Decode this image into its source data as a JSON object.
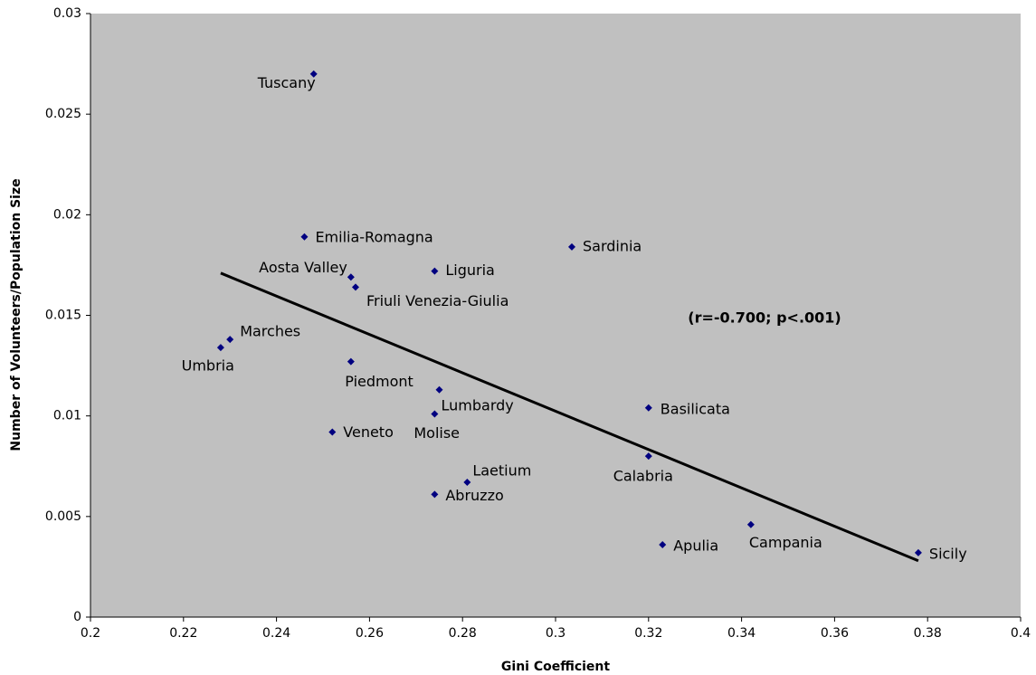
{
  "chart_data": {
    "type": "scatter",
    "labels": [
      "Tuscany",
      "Emilia-Romagna",
      "Sardinia",
      "Aosta Valley",
      "Liguria",
      "Friuli Venezia-Giulia",
      "Marches",
      "Umbria",
      "Piedmont",
      "Lumbardy",
      "Molise",
      "Veneto",
      "Basilicata",
      "Calabria",
      "Laetium",
      "Abruzzo",
      "Campania",
      "Apulia",
      "Sicily"
    ],
    "x": [
      0.248,
      0.246,
      0.3035,
      0.256,
      0.274,
      0.257,
      0.23,
      0.228,
      0.256,
      0.275,
      0.274,
      0.252,
      0.32,
      0.32,
      0.281,
      0.274,
      0.342,
      0.323,
      0.378
    ],
    "y": [
      0.027,
      0.0189,
      0.0184,
      0.0169,
      0.0172,
      0.0164,
      0.0138,
      0.0134,
      0.0127,
      0.0113,
      0.0101,
      0.0092,
      0.0104,
      0.008,
      0.0067,
      0.0061,
      0.0046,
      0.0036,
      0.0032
    ],
    "color": "#000080",
    "trendline": {
      "x": [
        0.228,
        0.378
      ],
      "y": [
        0.0171,
        0.0028
      ],
      "color": "#000000"
    },
    "annotation": "(r=-0.700; p<.001)",
    "x_label": "Gini Coefficient",
    "y_label": "Number of Volunteers/Population Size",
    "xlim": [
      0.2,
      0.4
    ],
    "xticks": [
      0.2,
      0.22,
      0.24,
      0.26,
      0.28,
      0.3,
      0.32,
      0.34,
      0.36,
      0.38,
      0.4
    ],
    "ylim": [
      0,
      0.03
    ],
    "yticks": [
      0,
      0.005,
      0.01,
      0.015,
      0.02,
      0.025,
      0.03
    ],
    "grid": false
  }
}
